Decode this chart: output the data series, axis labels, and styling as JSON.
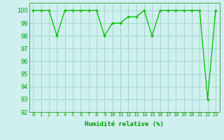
{
  "x": [
    0,
    1,
    2,
    3,
    4,
    5,
    6,
    7,
    8,
    9,
    10,
    11,
    12,
    13,
    14,
    15,
    16,
    17,
    18,
    19,
    20,
    21,
    22,
    23
  ],
  "y": [
    100,
    100,
    100,
    98,
    100,
    100,
    100,
    100,
    100,
    98,
    99,
    99,
    99.5,
    99.5,
    100,
    98,
    100,
    100,
    100,
    100,
    100,
    100,
    93,
    100
  ],
  "xlim": [
    -0.5,
    23.5
  ],
  "ylim": [
    92,
    100.6
  ],
  "yticks": [
    92,
    93,
    94,
    95,
    96,
    97,
    98,
    99,
    100
  ],
  "xtick_labels": [
    "0",
    "1",
    "2",
    "3",
    "4",
    "5",
    "6",
    "7",
    "8",
    "9",
    "10",
    "11",
    "12",
    "13",
    "14",
    "15",
    "16",
    "17",
    "18",
    "19",
    "20",
    "21",
    "22",
    "23"
  ],
  "xlabel": "Humidité relative (%)",
  "line_color": "#00bb00",
  "marker_color": "#00bb00",
  "bg_color": "#cff0ee",
  "grid_color": "#99ccbb",
  "axis_color": "#44aa44",
  "tick_color": "#009900",
  "label_color": "#009900"
}
